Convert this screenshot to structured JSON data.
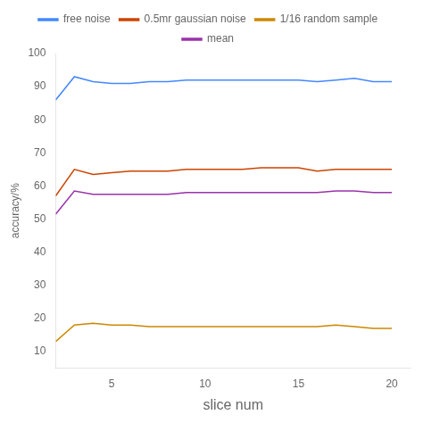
{
  "chart_data": {
    "type": "line",
    "xlabel": "slice num",
    "ylabel": "accuracy/%",
    "x": [
      2,
      3,
      4,
      5,
      6,
      7,
      8,
      9,
      10,
      11,
      12,
      13,
      14,
      15,
      16,
      17,
      18,
      19,
      20
    ],
    "series": [
      {
        "name": "free noise",
        "color": "#4488FF",
        "values": [
          86,
          93,
          91.5,
          91,
          91,
          91.5,
          91.5,
          92,
          92,
          92,
          92,
          92,
          92,
          92,
          91.5,
          92,
          92.5,
          91.5,
          91.5
        ]
      },
      {
        "name": "0.5mr gaussian noise",
        "color": "#CC4400",
        "values": [
          57,
          65,
          63.5,
          64,
          64.5,
          64.5,
          64.5,
          65,
          65,
          65,
          65,
          65.5,
          65.5,
          65.5,
          64.5,
          65,
          65,
          65,
          65
        ]
      },
      {
        "name": "1/16 random sample",
        "color": "#CC8800",
        "values": [
          13,
          18,
          18.5,
          18,
          18,
          17.5,
          17.5,
          17.5,
          17.5,
          17.5,
          17.5,
          17.5,
          17.5,
          17.5,
          17.5,
          18,
          17.5,
          17,
          17
        ]
      },
      {
        "name": "mean",
        "color": "#9933AA",
        "values": [
          51.5,
          58.5,
          57.5,
          57.5,
          57.5,
          57.5,
          57.5,
          58,
          58,
          58,
          58,
          58,
          58,
          58,
          58,
          58.5,
          58.5,
          58,
          58
        ]
      }
    ],
    "xlim": [
      2,
      21
    ],
    "ylim": [
      5,
      100
    ],
    "xticks": [
      5,
      10,
      15,
      20
    ],
    "yticks": [
      10,
      20,
      30,
      40,
      50,
      60,
      70,
      80,
      90,
      100
    ],
    "grid": false,
    "legend": "top"
  }
}
